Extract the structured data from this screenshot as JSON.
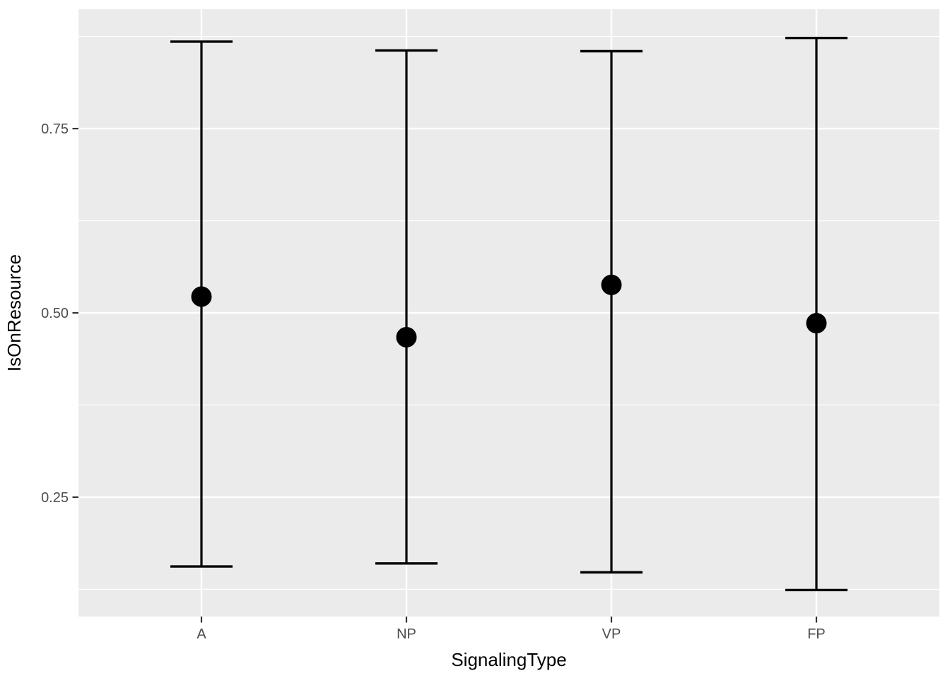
{
  "chart_data": {
    "type": "pointrange",
    "title": "",
    "xlabel": "SignalingType",
    "ylabel": "IsOnResource",
    "categories": [
      "A",
      "NP",
      "VP",
      "FP"
    ],
    "points": [
      {
        "category": "A",
        "mean": 0.522,
        "lower": 0.156,
        "upper": 0.868
      },
      {
        "category": "NP",
        "mean": 0.467,
        "lower": 0.16,
        "upper": 0.856
      },
      {
        "category": "VP",
        "mean": 0.538,
        "lower": 0.148,
        "upper": 0.855
      },
      {
        "category": "FP",
        "mean": 0.486,
        "lower": 0.124,
        "upper": 0.873
      }
    ],
    "y_ticks": [
      0.25,
      0.5,
      0.75
    ],
    "y_tick_labels": [
      "0.25",
      "0.50",
      "0.75"
    ],
    "y_minor_gridlines": [
      0.125,
      0.375,
      0.625,
      0.875
    ],
    "ylim": [
      0.088,
      0.912
    ],
    "grid": true,
    "legend": "none",
    "theme": {
      "panel_bg": "#EBEBEB",
      "grid_color": "#FFFFFF",
      "data_color": "#000000",
      "tick_label_color": "#4D4D4D",
      "axis_title_color": "#000000",
      "tick_mark_color": "#333333",
      "plot_bg": "#FFFFFF"
    }
  }
}
